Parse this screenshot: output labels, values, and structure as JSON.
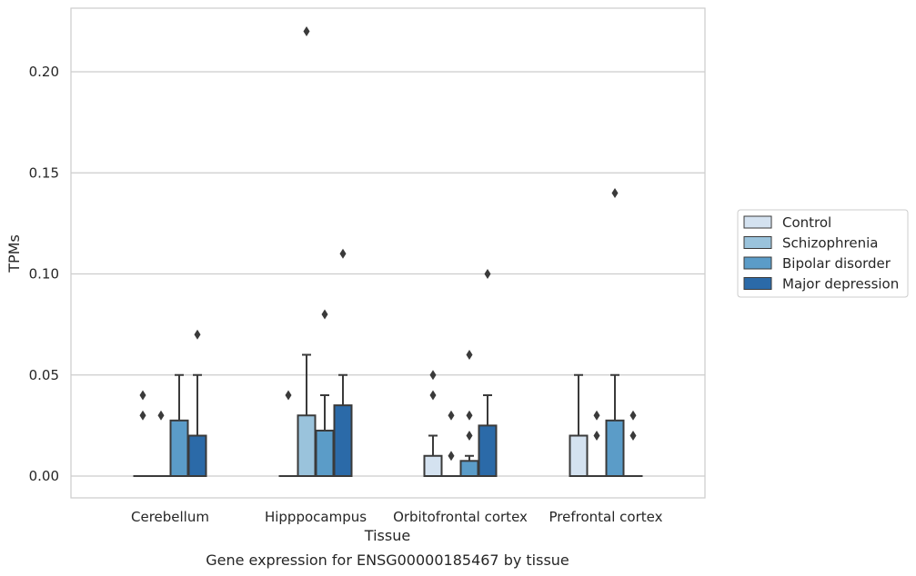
{
  "chart_data": {
    "type": "box",
    "title": "",
    "xlabel": "Tissue",
    "ylabel": "TPMs",
    "caption": "Gene expression for ENSG00000185467 by tissue",
    "categories": [
      "Cerebellum",
      "Hipppocampus",
      "Orbitofrontal cortex",
      "Prefrontal cortex"
    ],
    "ylim": [
      -0.011,
      0.232
    ],
    "yticks": [
      "0.00",
      "0.05",
      "0.10",
      "0.15",
      "0.20"
    ],
    "grid": true,
    "legend_position": "right",
    "series": [
      {
        "name": "Control",
        "color": "#d4e2f0",
        "boxes": [
          {
            "q1": 0,
            "median": 0,
            "q3": 0,
            "whisker_low": 0,
            "whisker_high": 0,
            "outliers": [
              0.03,
              0.04
            ]
          },
          {
            "q1": 0,
            "median": 0,
            "q3": 0,
            "whisker_low": 0,
            "whisker_high": 0,
            "outliers": [
              0.04
            ]
          },
          {
            "q1": 0,
            "median": 0,
            "q3": 0.01,
            "whisker_low": 0,
            "whisker_high": 0.02,
            "outliers": [
              0.04,
              0.05
            ]
          },
          {
            "q1": 0,
            "median": 0,
            "q3": 0.02,
            "whisker_low": 0,
            "whisker_high": 0.05,
            "outliers": []
          }
        ]
      },
      {
        "name": "Schizophrenia",
        "color": "#9ac3dc",
        "boxes": [
          {
            "q1": 0,
            "median": 0,
            "q3": 0,
            "whisker_low": 0,
            "whisker_high": 0,
            "outliers": [
              0.03
            ]
          },
          {
            "q1": 0,
            "median": 0,
            "q3": 0.03,
            "whisker_low": 0,
            "whisker_high": 0.06,
            "outliers": [
              0.22
            ]
          },
          {
            "q1": 0,
            "median": 0,
            "q3": 0,
            "whisker_low": 0,
            "whisker_high": 0,
            "outliers": [
              0.01,
              0.03
            ]
          },
          {
            "q1": 0,
            "median": 0,
            "q3": 0,
            "whisker_low": 0,
            "whisker_high": 0,
            "outliers": [
              0.02,
              0.03
            ]
          }
        ]
      },
      {
        "name": "Bipolar disorder",
        "color": "#5b9cc8",
        "boxes": [
          {
            "q1": 0,
            "median": 0,
            "q3": 0.0275,
            "whisker_low": 0,
            "whisker_high": 0.05,
            "outliers": []
          },
          {
            "q1": 0,
            "median": 0,
            "q3": 0.0225,
            "whisker_low": 0,
            "whisker_high": 0.04,
            "outliers": [
              0.08
            ]
          },
          {
            "q1": 0,
            "median": 0,
            "q3": 0.0075,
            "whisker_low": 0,
            "whisker_high": 0.01,
            "outliers": [
              0.02,
              0.03,
              0.06
            ]
          },
          {
            "q1": 0,
            "median": 0,
            "q3": 0.0275,
            "whisker_low": 0,
            "whisker_high": 0.05,
            "outliers": [
              0.14
            ]
          }
        ]
      },
      {
        "name": "Major depression",
        "color": "#2b6aa8",
        "boxes": [
          {
            "q1": 0,
            "median": 0,
            "q3": 0.02,
            "whisker_low": 0,
            "whisker_high": 0.05,
            "outliers": [
              0.07
            ]
          },
          {
            "q1": 0,
            "median": 0,
            "q3": 0.035,
            "whisker_low": 0,
            "whisker_high": 0.05,
            "outliers": [
              0.11
            ]
          },
          {
            "q1": 0,
            "median": 0,
            "q3": 0.025,
            "whisker_low": 0,
            "whisker_high": 0.04,
            "outliers": [
              0.1
            ]
          },
          {
            "q1": 0,
            "median": 0,
            "q3": 0,
            "whisker_low": 0,
            "whisker_high": 0,
            "outliers": [
              0.02,
              0.03
            ]
          }
        ]
      }
    ]
  }
}
